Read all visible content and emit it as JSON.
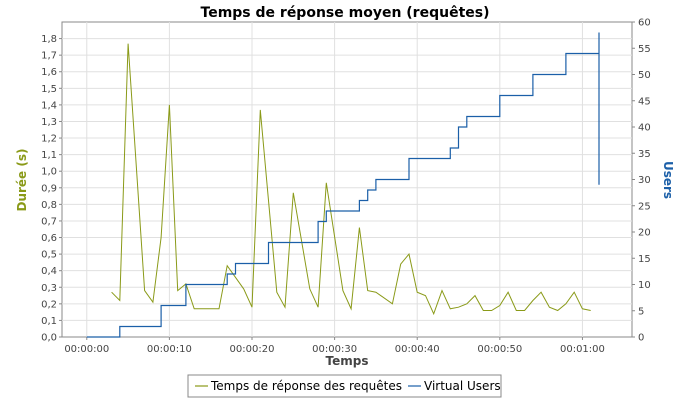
{
  "chart_data": {
    "type": "line",
    "title": "Temps de réponse moyen (requêtes)",
    "xlabel": "Temps",
    "ylabel_left": "Durée (s)",
    "ylabel_right": "Users",
    "x_ticks": [
      "00:00:00",
      "00:00:10",
      "00:00:20",
      "00:00:30",
      "00:00:40",
      "00:00:50",
      "00:01:00"
    ],
    "y_left_ticks": [
      "0,0",
      "0,1",
      "0,2",
      "0,3",
      "0,4",
      "0,5",
      "0,6",
      "0,7",
      "0,8",
      "0,9",
      "1,0",
      "1,1",
      "1,2",
      "1,3",
      "1,4",
      "1,5",
      "1,6",
      "1,7",
      "1,8"
    ],
    "y_right_ticks": [
      "0",
      "5",
      "10",
      "15",
      "20",
      "25",
      "30",
      "35",
      "40",
      "45",
      "50",
      "55",
      "60"
    ],
    "xlim_seconds": [
      -3,
      66
    ],
    "y_left_lim": [
      0,
      1.9
    ],
    "y_right_lim": [
      0,
      60
    ],
    "grid": true,
    "legend_position": "bottom",
    "series": [
      {
        "name": "Temps de réponse des requêtes",
        "axis": "left",
        "color": "#8a9a18",
        "x": [
          3,
          4,
          5,
          7,
          8,
          9,
          10,
          11,
          12,
          13,
          16,
          17,
          19,
          20,
          21,
          23,
          24,
          25,
          27,
          28,
          29,
          31,
          32,
          33,
          34,
          35,
          37,
          38,
          39,
          40,
          41,
          42,
          43,
          44,
          45,
          46,
          47,
          48,
          49,
          50,
          51,
          52,
          53,
          54,
          55,
          56,
          57,
          58,
          59,
          60,
          61
        ],
        "y": [
          0.27,
          0.22,
          1.77,
          0.28,
          0.21,
          0.6,
          1.4,
          0.28,
          0.32,
          0.17,
          0.17,
          0.43,
          0.29,
          0.18,
          1.37,
          0.27,
          0.18,
          0.87,
          0.29,
          0.18,
          0.93,
          0.28,
          0.17,
          0.66,
          0.28,
          0.27,
          0.2,
          0.44,
          0.5,
          0.27,
          0.25,
          0.14,
          0.28,
          0.17,
          0.18,
          0.2,
          0.25,
          0.16,
          0.16,
          0.19,
          0.27,
          0.16,
          0.16,
          0.22,
          0.27,
          0.18,
          0.16,
          0.2,
          0.27,
          0.17,
          0.16
        ]
      },
      {
        "name": "Virtual Users",
        "axis": "right",
        "color": "#1b5fa8",
        "step": true,
        "x": [
          0,
          4,
          9,
          12,
          17,
          18,
          22,
          28,
          29,
          33,
          34,
          35,
          39,
          44,
          45,
          46,
          50,
          54,
          58,
          62,
          62
        ],
        "y": [
          0,
          2,
          6,
          10,
          12,
          14,
          18,
          22,
          24,
          26,
          28,
          30,
          34,
          36,
          40,
          42,
          46,
          50,
          54,
          58,
          29
        ]
      }
    ]
  }
}
